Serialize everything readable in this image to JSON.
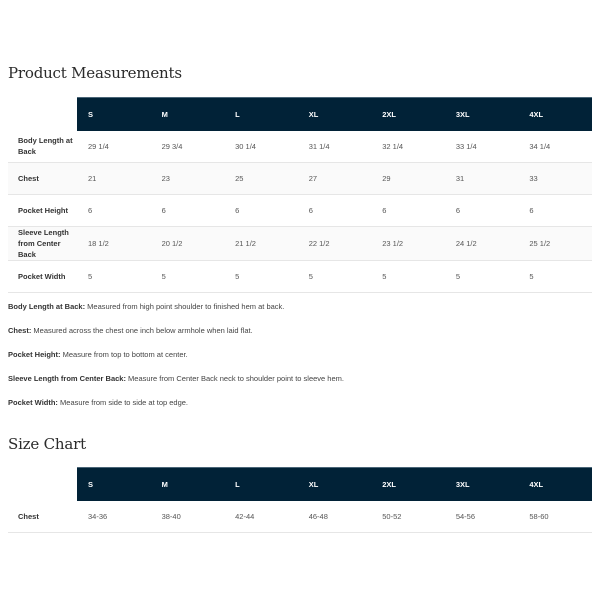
{
  "measurements": {
    "title": "Product Measurements",
    "sizes": [
      "S",
      "M",
      "L",
      "XL",
      "2XL",
      "3XL",
      "4XL"
    ],
    "rows": [
      {
        "label": "Body Length at Back",
        "values": [
          "29 1/4",
          "29 3/4",
          "30 1/4",
          "31 1/4",
          "32 1/4",
          "33 1/4",
          "34 1/4"
        ]
      },
      {
        "label": "Chest",
        "values": [
          "21",
          "23",
          "25",
          "27",
          "29",
          "31",
          "33"
        ]
      },
      {
        "label": "Pocket Height",
        "values": [
          "6",
          "6",
          "6",
          "6",
          "6",
          "6",
          "6"
        ]
      },
      {
        "label": "Sleeve Length from Center Back",
        "values": [
          "18 1/2",
          "20 1/2",
          "21 1/2",
          "22 1/2",
          "23 1/2",
          "24 1/2",
          "25 1/2"
        ]
      },
      {
        "label": "Pocket Width",
        "values": [
          "5",
          "5",
          "5",
          "5",
          "5",
          "5",
          "5"
        ]
      }
    ]
  },
  "notes": [
    {
      "term": "Body Length at Back:",
      "text": " Measured from high point shoulder to finished hem at back."
    },
    {
      "term": "Chest:",
      "text": " Measured across the chest one inch below armhole when laid flat."
    },
    {
      "term": "Pocket Height:",
      "text": " Measure from top to bottom at center."
    },
    {
      "term": "Sleeve Length from Center Back:",
      "text": " Measure from Center Back neck to shoulder point to sleeve hem."
    },
    {
      "term": "Pocket Width:",
      "text": " Measure from side to side at top edge."
    }
  ],
  "size_chart": {
    "title": "Size Chart",
    "sizes": [
      "S",
      "M",
      "L",
      "XL",
      "2XL",
      "3XL",
      "4XL"
    ],
    "rows": [
      {
        "label": "Chest",
        "values": [
          "34-36",
          "38-40",
          "42-44",
          "46-48",
          "50-52",
          "54-56",
          "58-60"
        ]
      }
    ]
  },
  "colors": {
    "header_bg": "#012237"
  }
}
